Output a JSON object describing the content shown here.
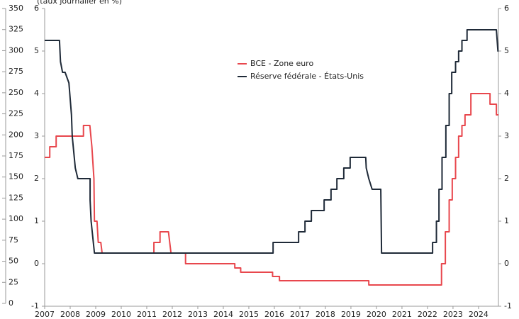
{
  "chart_data": {
    "type": "line",
    "subtitle": "(taux journalier en %)",
    "xlim": [
      2007,
      2024.78
    ],
    "xticks": [
      2007,
      2008,
      2009,
      2010,
      2011,
      2012,
      2013,
      2014,
      2015,
      2016,
      2017,
      2018,
      2019,
      2020,
      2021,
      2022,
      2023,
      2024
    ],
    "ylim": [
      -1,
      6
    ],
    "yticks": [
      -1,
      0,
      1,
      2,
      3,
      4,
      5,
      6
    ],
    "y2lim": [
      -1,
      6
    ],
    "y2ticks": [
      -1,
      0,
      1,
      2,
      3,
      4,
      5,
      6
    ],
    "outer_ylim": [
      0,
      350
    ],
    "outer_yticks": [
      0,
      25,
      50,
      75,
      100,
      125,
      150,
      175,
      200,
      225,
      250,
      275,
      300,
      325,
      350
    ],
    "step": "post",
    "grid": false,
    "series": [
      {
        "name": "BCE - Zone euro",
        "color": "#e8474d",
        "x": [
          2007.0,
          2007.2,
          2007.2,
          2007.45,
          2007.45,
          2008.52,
          2008.52,
          2008.77,
          2008.85,
          2008.93,
          2008.95,
          2009.05,
          2009.1,
          2009.2,
          2009.25,
          2011.28,
          2011.28,
          2011.52,
          2011.52,
          2011.85,
          2011.95,
          2012.52,
          2012.52,
          2014.45,
          2014.45,
          2014.68,
          2014.68,
          2015.93,
          2015.93,
          2016.2,
          2016.2,
          2019.7,
          2019.7,
          2022.55,
          2022.55,
          2022.7,
          2022.7,
          2022.85,
          2022.85,
          2022.97,
          2022.97,
          2023.1,
          2023.1,
          2023.22,
          2023.22,
          2023.35,
          2023.35,
          2023.47,
          2023.47,
          2023.7,
          2023.7,
          2024.45,
          2024.45,
          2024.7,
          2024.7,
          2024.78
        ],
        "values": [
          2.5,
          2.5,
          2.75,
          2.75,
          3.0,
          3.0,
          3.25,
          3.25,
          2.75,
          2.0,
          1.0,
          1.0,
          0.5,
          0.5,
          0.25,
          0.25,
          0.5,
          0.5,
          0.75,
          0.75,
          0.25,
          0.25,
          0,
          0,
          -0.1,
          -0.1,
          -0.2,
          -0.2,
          -0.3,
          -0.3,
          -0.4,
          -0.4,
          -0.5,
          -0.5,
          0,
          0,
          0.75,
          0.75,
          1.5,
          1.5,
          2.0,
          2.0,
          2.5,
          2.5,
          3.0,
          3.0,
          3.25,
          3.25,
          3.5,
          3.5,
          4.0,
          4.0,
          3.75,
          3.75,
          3.5,
          3.5
        ]
      },
      {
        "name": "Réserve fédérale - États-Unis",
        "color": "#1f2a38",
        "x": [
          2007.0,
          2007.58,
          2007.62,
          2007.7,
          2007.8,
          2007.95,
          2008.05,
          2008.08,
          2008.2,
          2008.3,
          2008.78,
          2008.78,
          2008.82,
          2008.95,
          2015.95,
          2015.95,
          2016.95,
          2016.95,
          2017.2,
          2017.2,
          2017.45,
          2017.45,
          2017.95,
          2017.95,
          2018.22,
          2018.22,
          2018.45,
          2018.45,
          2018.72,
          2018.72,
          2018.97,
          2018.97,
          2019.58,
          2019.6,
          2019.7,
          2019.83,
          2020.17,
          2020.2,
          2022.2,
          2022.2,
          2022.35,
          2022.35,
          2022.45,
          2022.45,
          2022.57,
          2022.57,
          2022.72,
          2022.72,
          2022.85,
          2022.85,
          2022.95,
          2022.95,
          2023.1,
          2023.1,
          2023.22,
          2023.22,
          2023.35,
          2023.35,
          2023.55,
          2023.55,
          2024.7,
          2024.76,
          2024.78
        ],
        "values": [
          5.25,
          5.25,
          4.75,
          4.5,
          4.5,
          4.25,
          3.5,
          3.0,
          2.25,
          2.0,
          2.0,
          1.5,
          1.0,
          0.25,
          0.25,
          0.5,
          0.5,
          0.75,
          0.75,
          1.0,
          1.0,
          1.25,
          1.25,
          1.5,
          1.5,
          1.75,
          1.75,
          2.0,
          2.0,
          2.25,
          2.25,
          2.5,
          2.5,
          2.25,
          2.0,
          1.75,
          1.75,
          0.25,
          0.25,
          0.5,
          0.5,
          1.0,
          1.0,
          1.75,
          1.75,
          2.5,
          2.5,
          3.25,
          3.25,
          4.0,
          4.0,
          4.5,
          4.5,
          4.75,
          4.75,
          5.0,
          5.0,
          5.25,
          5.25,
          5.5,
          5.5,
          5.0,
          5.0
        ]
      }
    ]
  }
}
